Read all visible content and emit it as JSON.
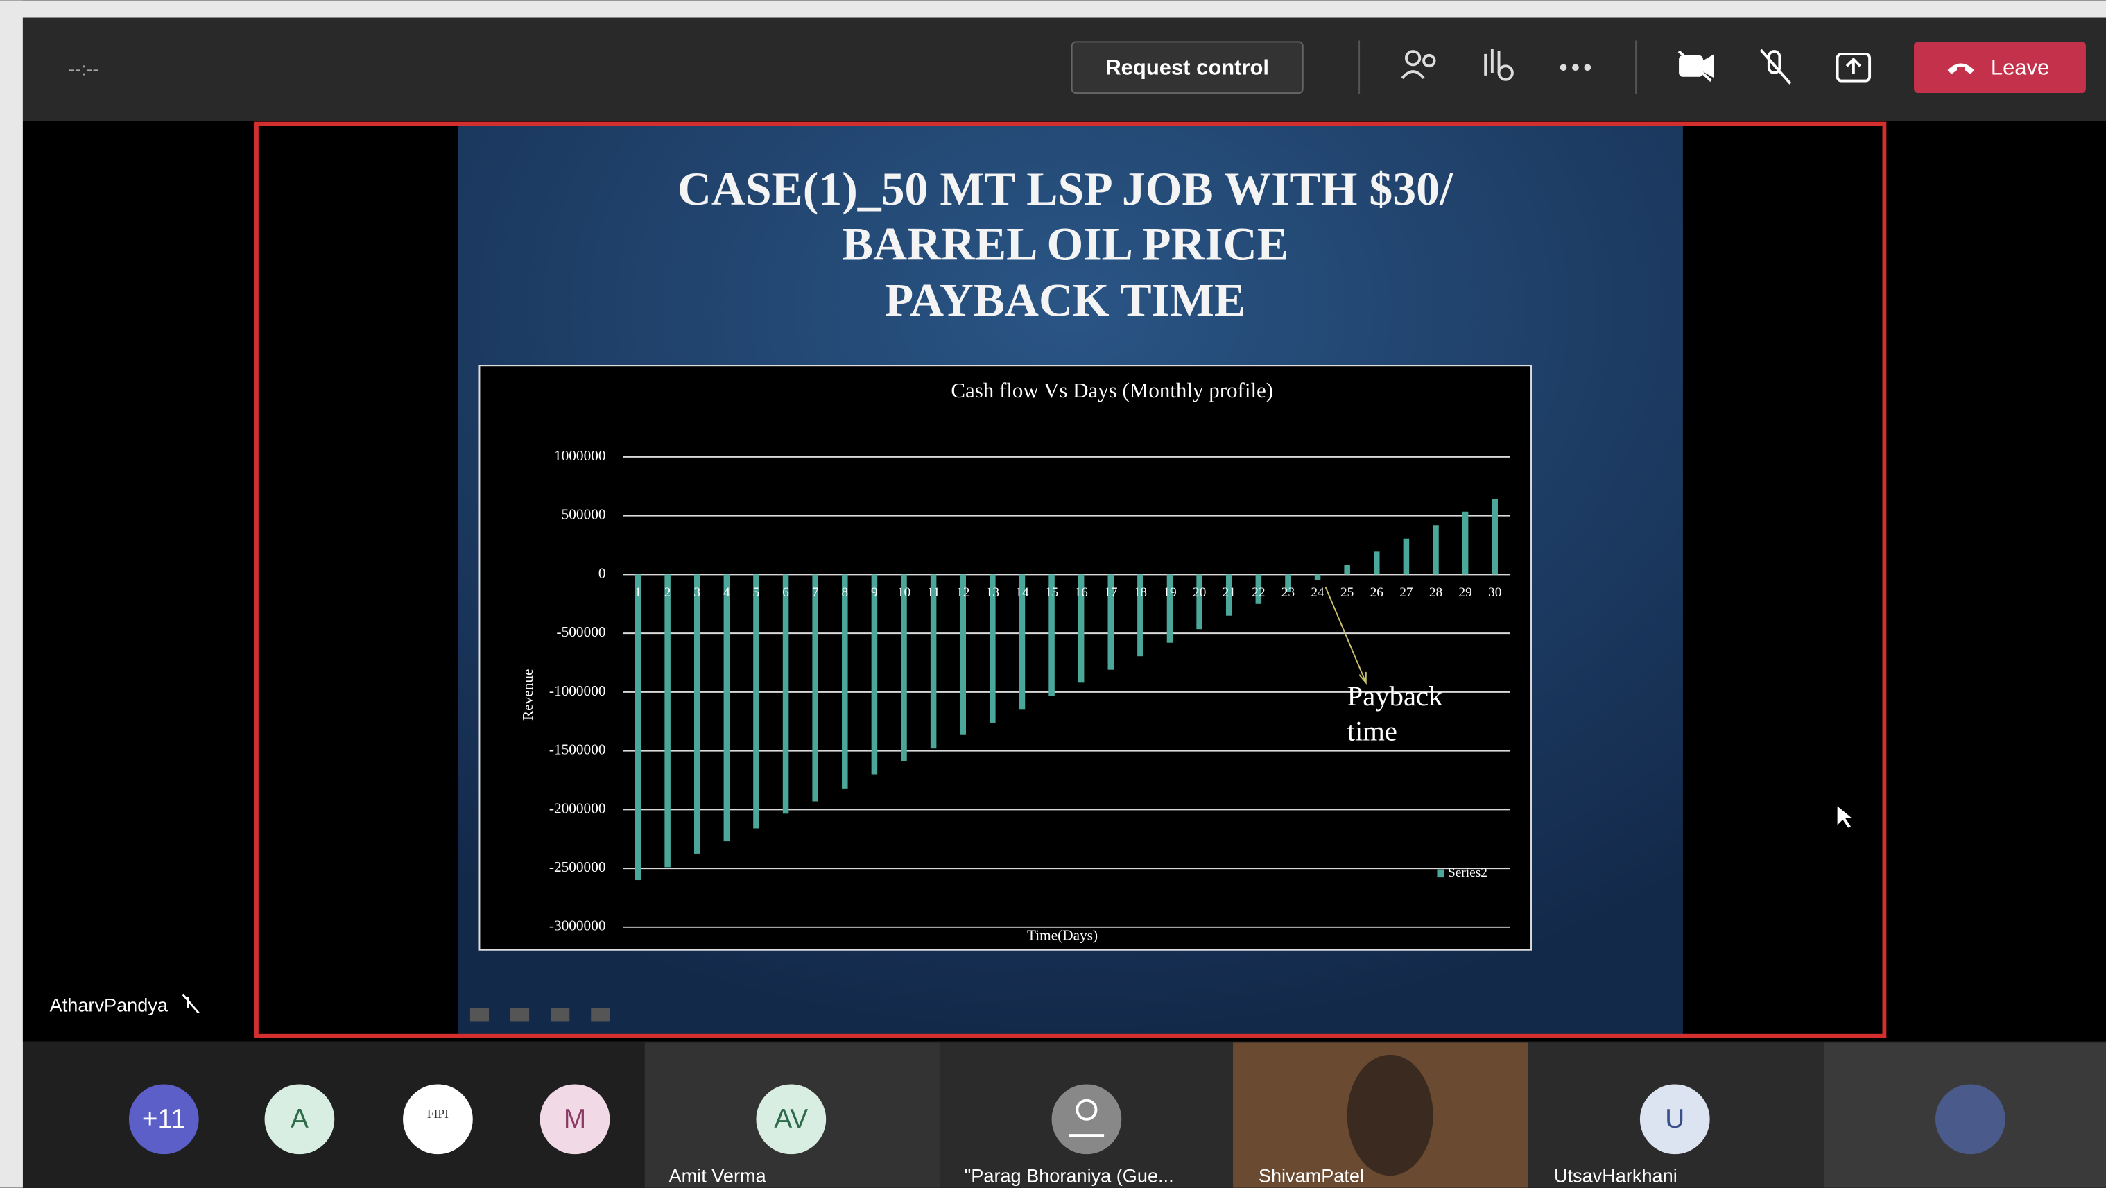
{
  "toolbar": {
    "timer": "--:--",
    "request_control": "Request control",
    "leave": "Leave"
  },
  "presenter": "AtharvPandya",
  "slide": {
    "title_lines": [
      "CASE(1)_50 MT LSP JOB WITH $30/",
      "BARREL OIL PRICE",
      "PAYBACK TIME"
    ]
  },
  "chart_data": {
    "type": "bar",
    "title": "Cash flow Vs Days (Monthly profile)",
    "x_label": "Time(Days)",
    "y_label": "Revenue",
    "annotation": [
      "Payback",
      "time"
    ],
    "categories": [
      "1",
      "2",
      "3",
      "4",
      "5",
      "6",
      "7",
      "8",
      "9",
      "10",
      "11",
      "12",
      "13",
      "14",
      "15",
      "16",
      "17",
      "18",
      "19",
      "20",
      "21",
      "22",
      "23",
      "24",
      "25",
      "26",
      "27",
      "28",
      "29",
      "30"
    ],
    "series": [
      {
        "name": "Series2",
        "color": "#4aa79a",
        "values": [
          -2600000,
          -2490000,
          -2375000,
          -2270000,
          -2160000,
          -2035000,
          -1930000,
          -1820000,
          -1700000,
          -1590000,
          -1480000,
          -1365000,
          -1260000,
          -1150000,
          -1035000,
          -920000,
          -810000,
          -695000,
          -580000,
          -465000,
          -350000,
          -250000,
          -150000,
          -45000,
          80000,
          195000,
          305000,
          420000,
          535000,
          640000
        ]
      }
    ],
    "ylim": [
      -3000000,
      1000000
    ],
    "yticks": [
      -3000000,
      -2500000,
      -2000000,
      -1500000,
      -1000000,
      -500000,
      0,
      500000,
      1000000
    ],
    "grid": true,
    "legend": "lower right"
  },
  "participants": [
    {
      "initials": "+11"
    },
    {
      "initials": "A"
    },
    {
      "initials": "FIPI"
    },
    {
      "initials": "M"
    },
    {
      "initials": "AV",
      "name": "Amit Verma"
    },
    {
      "name": "\"Parag Bhoraniya (Gue..."
    },
    {
      "name": "ShivamPatel"
    },
    {
      "initials": "U",
      "name": "UtsavHarkhani"
    }
  ]
}
